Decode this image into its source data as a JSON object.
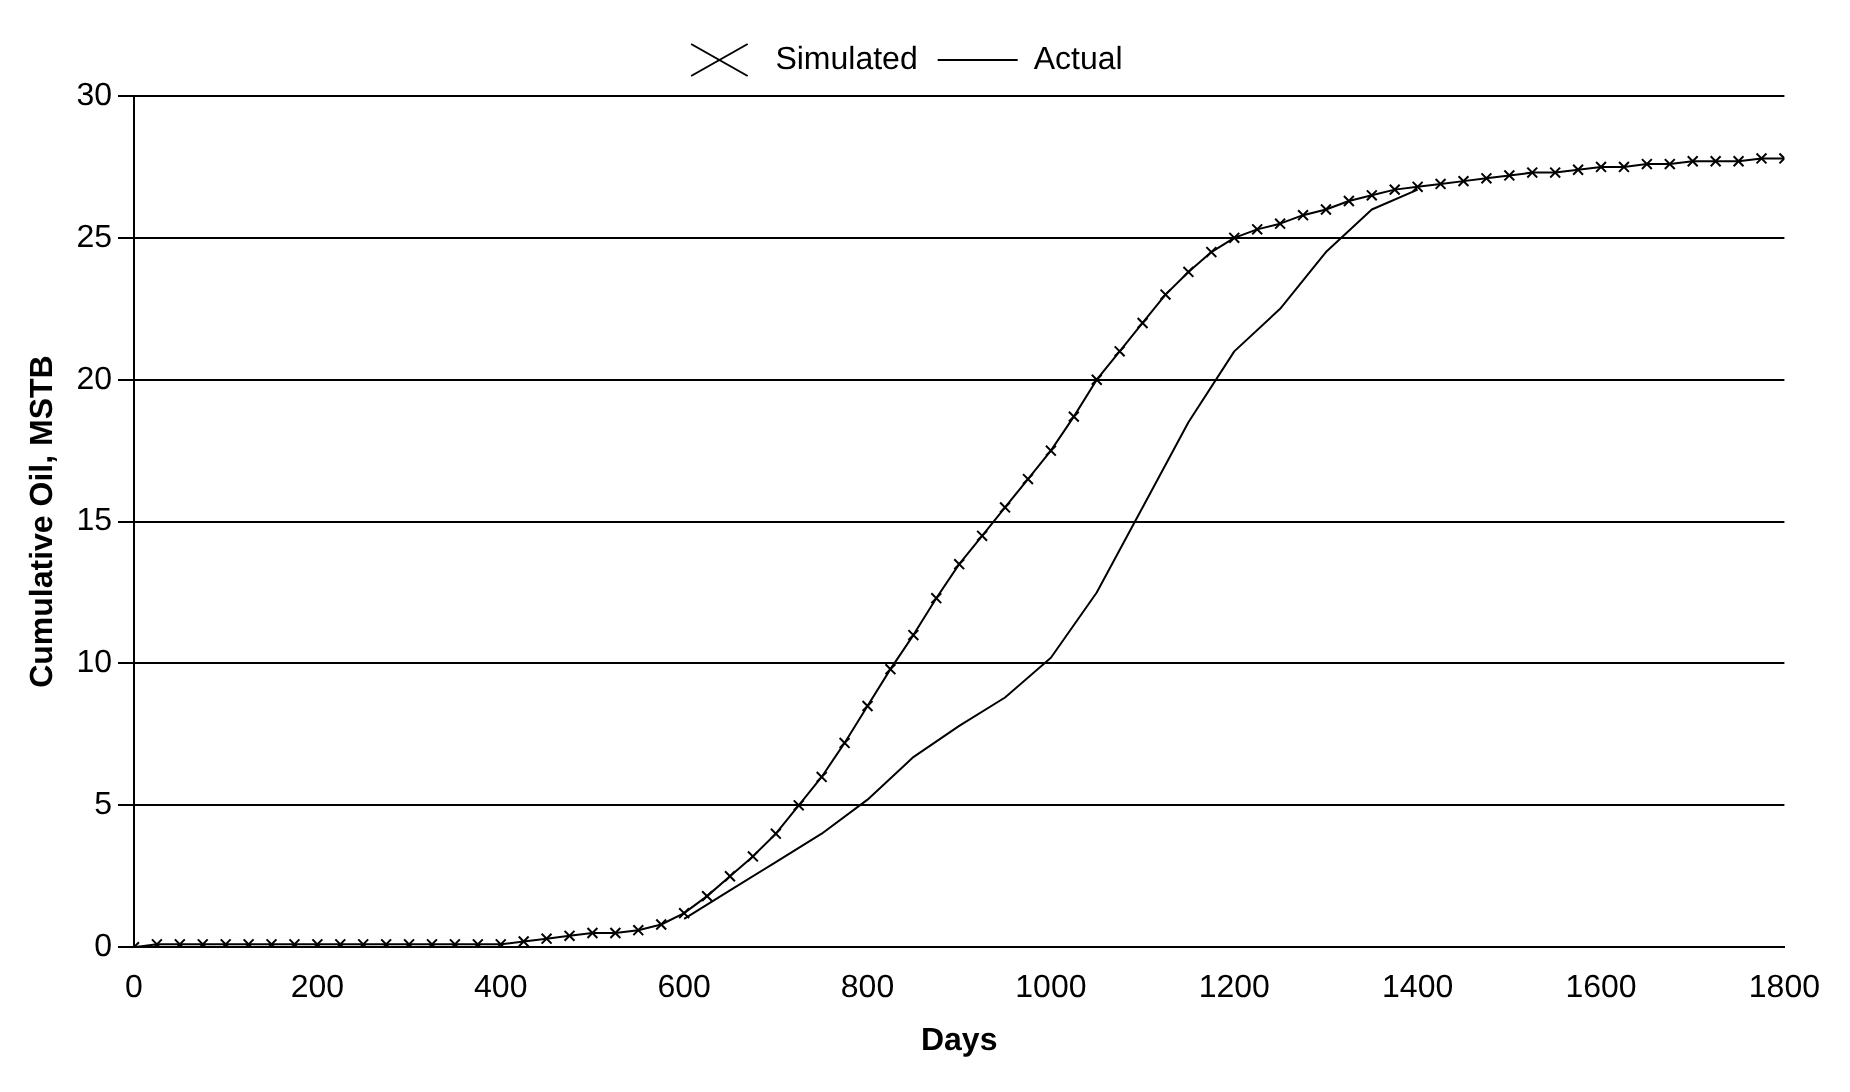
{
  "chart_data": {
    "type": "line",
    "xlabel": "Days",
    "ylabel": "Cumulative Oil, MSTB",
    "xlim": [
      0,
      1800
    ],
    "xticks": [
      0,
      200,
      400,
      600,
      800,
      1000,
      1200,
      1400,
      1600,
      1800
    ],
    "ylim": [
      0,
      30
    ],
    "yticks": [
      0,
      5,
      10,
      15,
      20,
      25,
      30
    ],
    "grid": "y",
    "legend": "top",
    "series": [
      {
        "name": "Simulated",
        "color": "#000000",
        "marker": "cross",
        "x": [
          0,
          25,
          50,
          75,
          100,
          125,
          150,
          175,
          200,
          225,
          250,
          275,
          300,
          325,
          350,
          375,
          400,
          425,
          450,
          475,
          500,
          525,
          550,
          575,
          600,
          625,
          650,
          675,
          700,
          725,
          750,
          775,
          800,
          825,
          850,
          875,
          900,
          925,
          950,
          975,
          1000,
          1025,
          1050,
          1075,
          1100,
          1125,
          1150,
          1175,
          1200,
          1225,
          1250,
          1275,
          1300,
          1325,
          1350,
          1375,
          1400,
          1425,
          1450,
          1475,
          1500,
          1525,
          1550,
          1575,
          1600,
          1625,
          1650,
          1675,
          1700,
          1725,
          1750,
          1775,
          1800
        ],
        "values": [
          0,
          0.1,
          0.1,
          0.1,
          0.1,
          0.1,
          0.1,
          0.1,
          0.1,
          0.1,
          0.1,
          0.1,
          0.1,
          0.1,
          0.1,
          0.1,
          0.1,
          0.2,
          0.3,
          0.4,
          0.5,
          0.5,
          0.6,
          0.8,
          1.2,
          1.8,
          2.5,
          3.2,
          4,
          5,
          6,
          7.2,
          8.5,
          9.8,
          11,
          12.3,
          13.5,
          14.5,
          15.5,
          16.5,
          17.5,
          18.7,
          20,
          21,
          22,
          23,
          23.8,
          24.5,
          25,
          25.3,
          25.5,
          25.8,
          26,
          26.3,
          26.5,
          26.7,
          26.8,
          26.9,
          27,
          27.1,
          27.2,
          27.3,
          27.3,
          27.4,
          27.5,
          27.5,
          27.6,
          27.6,
          27.7,
          27.7,
          27.7,
          27.8,
          27.8
        ]
      },
      {
        "name": "Actual",
        "color": "#000000",
        "marker": "none",
        "x": [
          600,
          650,
          700,
          750,
          800,
          850,
          900,
          950,
          1000,
          1050,
          1100,
          1150,
          1200,
          1250,
          1300,
          1350,
          1400
        ],
        "values": [
          1,
          2,
          3,
          4,
          5.2,
          6.7,
          7.8,
          8.8,
          10.2,
          12.5,
          15.5,
          18.5,
          21,
          22.5,
          24.5,
          26,
          26.7
        ]
      }
    ]
  }
}
